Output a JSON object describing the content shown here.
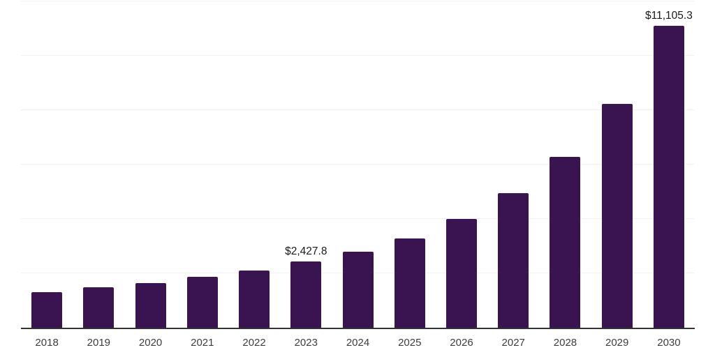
{
  "chart_data": {
    "type": "bar",
    "title": "",
    "xlabel": "",
    "ylabel": "",
    "categories": [
      "2018",
      "2019",
      "2020",
      "2021",
      "2022",
      "2023",
      "2024",
      "2025",
      "2026",
      "2027",
      "2028",
      "2029",
      "2030"
    ],
    "values": [
      1310,
      1475,
      1640,
      1870,
      2105,
      2427.8,
      2795,
      3285,
      3990,
      4950,
      6270,
      8235,
      11105.3
    ],
    "value_labels": {
      "2023": "$2,427.8",
      "2030": "$11,105.3"
    },
    "ylim": [
      0,
      12000
    ],
    "gridline_step": 2000,
    "grid": "horizontal-only",
    "legend": "none",
    "y_axis_tick_labels": "none",
    "colors": {
      "bar": "#391450",
      "axis_line": "#333333",
      "gridline": "#F1F1F3",
      "tick_label": "#3D3D3D",
      "value_label": "#1A1A1A",
      "background": "#FFFFFF"
    }
  }
}
